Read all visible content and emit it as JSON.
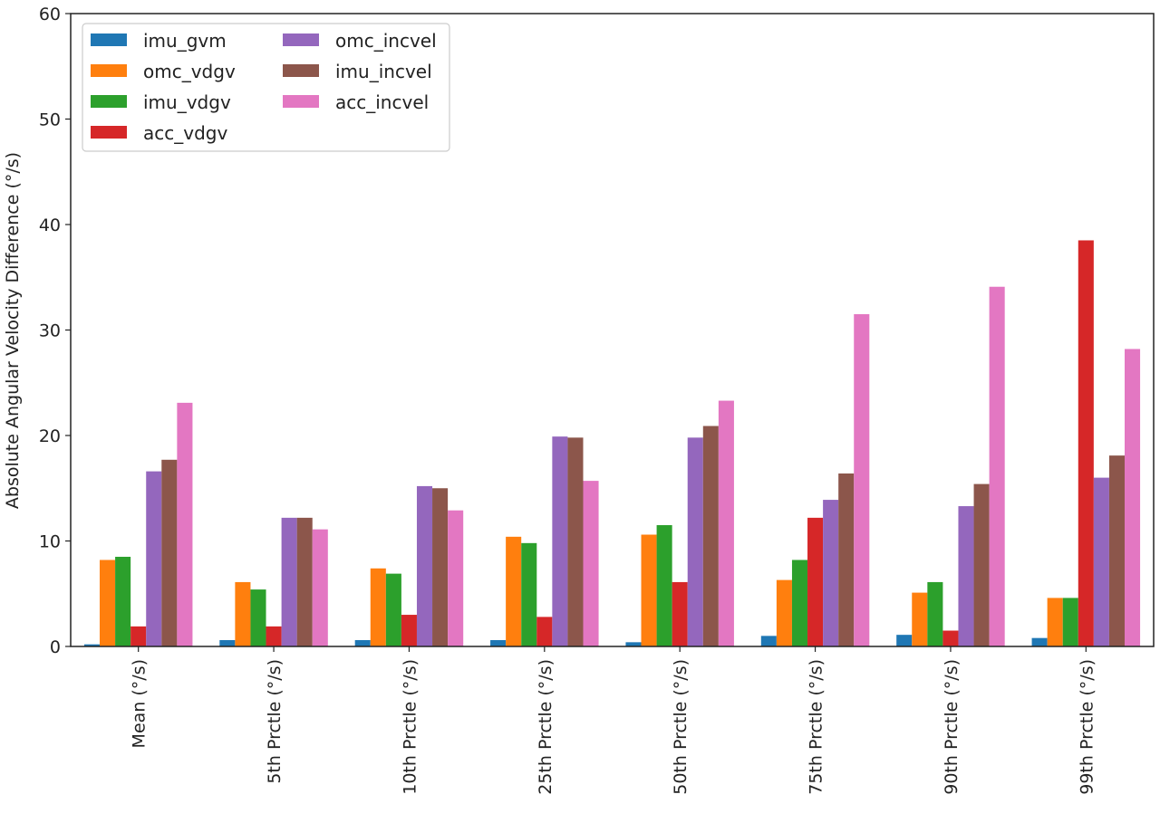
{
  "chart_data": {
    "type": "bar",
    "title": "",
    "xlabel": "",
    "ylabel": "Absolute Angular Velocity Difference (°/s)",
    "ylim": [
      0,
      60
    ],
    "yticks": [
      0,
      10,
      20,
      30,
      40,
      50,
      60
    ],
    "grid": false,
    "legend_position": "top-left",
    "categories": [
      "Mean (°/s)",
      "5th Prctle (°/s)",
      "10th Prctle (°/s)",
      "25th Prctle (°/s)",
      "50th Prctle (°/s)",
      "75th Prctle (°/s)",
      "90th Prctle (°/s)",
      "99th Prctle (°/s)"
    ],
    "series": [
      {
        "name": "imu_gvm",
        "color": "#1f77b4",
        "values": [
          0.2,
          0.6,
          0.6,
          0.6,
          0.4,
          1.0,
          1.1,
          0.8
        ]
      },
      {
        "name": "omc_vdgv",
        "color": "#ff7f0e",
        "values": [
          8.2,
          6.1,
          7.4,
          10.4,
          10.6,
          6.3,
          5.1,
          4.6
        ]
      },
      {
        "name": "imu_vdgv",
        "color": "#2ca02c",
        "values": [
          8.5,
          5.4,
          6.9,
          9.8,
          11.5,
          8.2,
          6.1,
          4.6
        ]
      },
      {
        "name": "acc_vdgv",
        "color": "#d62728",
        "values": [
          1.9,
          1.9,
          3.0,
          2.8,
          6.1,
          12.2,
          1.5,
          38.5
        ]
      },
      {
        "name": "omc_incvel",
        "color": "#9467bd",
        "values": [
          16.6,
          12.2,
          15.2,
          19.9,
          19.8,
          13.9,
          13.3,
          16.0
        ]
      },
      {
        "name": "imu_incvel",
        "color": "#8c564b",
        "values": [
          17.7,
          12.2,
          15.0,
          19.8,
          20.9,
          16.4,
          15.4,
          18.1
        ]
      },
      {
        "name": "acc_incvel",
        "color": "#e377c2",
        "values": [
          23.1,
          11.1,
          12.9,
          15.7,
          23.3,
          31.5,
          34.1,
          28.2
        ]
      }
    ]
  }
}
